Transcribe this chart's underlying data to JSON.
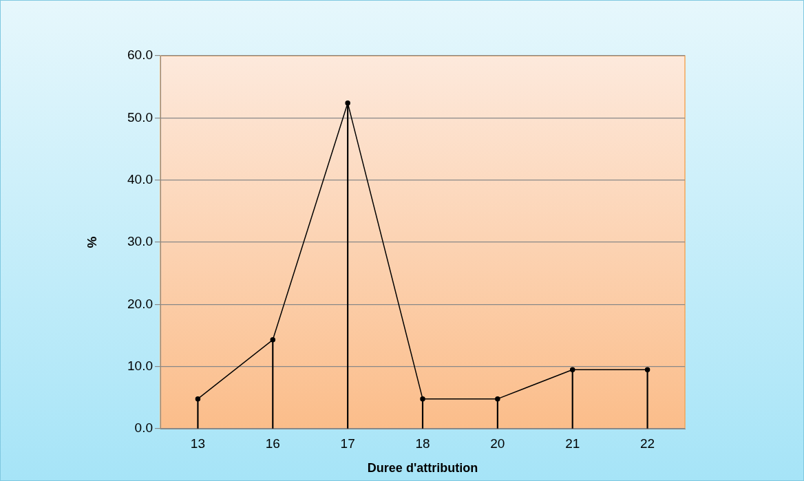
{
  "chart_data": {
    "type": "line",
    "xlabel": "Duree d'attribution",
    "ylabel": "%",
    "categories": [
      "13",
      "16",
      "17",
      "18",
      "20",
      "21",
      "22"
    ],
    "series": [
      {
        "color": "#000000",
        "values": [
          4.8,
          14.3,
          52.4,
          4.8,
          4.8,
          9.5,
          9.5
        ]
      },
      {
        "type": "bar",
        "color": "#000000",
        "values": [
          4.8,
          14.3,
          52.4,
          4.8,
          4.8,
          9.5,
          9.5
        ]
      }
    ],
    "ylim": [
      0,
      60
    ],
    "yticks": [
      {
        "value": 0,
        "label": "0.0"
      },
      {
        "value": 10,
        "label": "10.0"
      },
      {
        "value": 20,
        "label": "20.0"
      },
      {
        "value": 30,
        "label": "30.0"
      },
      {
        "value": 40,
        "label": "40.0"
      },
      {
        "value": 50,
        "label": "50.0"
      },
      {
        "value": 60,
        "label": "60.0"
      }
    ],
    "grid": "y",
    "legend": false,
    "marker": "circle",
    "line_style": "solid"
  }
}
